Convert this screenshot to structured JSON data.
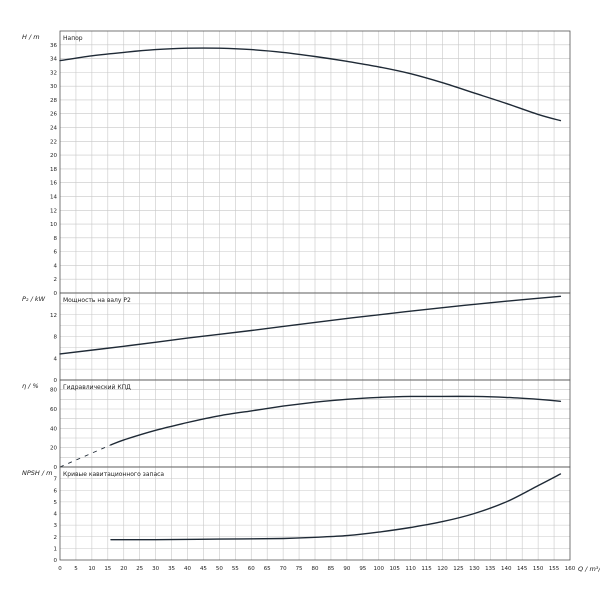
{
  "chart_data": [
    {
      "type": "line",
      "title": "Напор",
      "ylabel": "H / m",
      "xlim": [
        0,
        160
      ],
      "ylim": [
        0,
        38
      ],
      "ytick_step": 2,
      "yticks_labeled": [
        0,
        2,
        4,
        6,
        8,
        10,
        12,
        14,
        16,
        18,
        20,
        22,
        24,
        26,
        28,
        30,
        32,
        34,
        36
      ],
      "grid": true,
      "series": [
        {
          "x": [
            0,
            10,
            20,
            30,
            40,
            50,
            60,
            70,
            80,
            90,
            100,
            110,
            120,
            130,
            140,
            150,
            157
          ],
          "y": [
            33.7,
            34.4,
            34.9,
            35.3,
            35.5,
            35.5,
            35.3,
            34.9,
            34.3,
            33.6,
            32.8,
            31.8,
            30.5,
            29.0,
            27.5,
            25.9,
            25.0
          ]
        }
      ]
    },
    {
      "type": "line",
      "title": "Мощность на валу P2",
      "ylabel": "P₂ / kW",
      "xlim": [
        0,
        160
      ],
      "ylim": [
        0,
        16
      ],
      "ytick_step": 2,
      "yticks_labeled": [
        0,
        4,
        8,
        12
      ],
      "grid": true,
      "series": [
        {
          "x": [
            0,
            20,
            40,
            60,
            80,
            100,
            120,
            140,
            157
          ],
          "y": [
            4.8,
            6.2,
            7.7,
            9.1,
            10.6,
            12.0,
            13.3,
            14.5,
            15.4
          ]
        }
      ]
    },
    {
      "type": "line",
      "title": "Гидравлический КПД",
      "ylabel": "η / %",
      "xlim": [
        0,
        160
      ],
      "ylim": [
        0,
        90
      ],
      "ytick_step": 10,
      "yticks_labeled": [
        0,
        20,
        40,
        60,
        80
      ],
      "grid": true,
      "series": [
        {
          "x": [
            16,
            20,
            30,
            40,
            50,
            60,
            70,
            80,
            90,
            100,
            110,
            120,
            130,
            140,
            150,
            157
          ],
          "y": [
            23,
            28,
            38,
            46,
            53,
            58,
            63,
            67,
            70,
            72,
            73,
            73,
            73,
            72,
            70,
            68
          ]
        },
        {
          "style": "dashed",
          "x": [
            0,
            16
          ],
          "y": [
            0,
            23
          ]
        }
      ]
    },
    {
      "type": "line",
      "title": "Кривые кавитационного запаса",
      "ylabel": "NPSH / m",
      "xlabel": "Q / m³/h",
      "xlim": [
        0,
        160
      ],
      "ylim": [
        0,
        8
      ],
      "ytick_step": 1,
      "yticks_labeled": [
        0,
        1,
        2,
        3,
        4,
        5,
        6,
        7
      ],
      "xticks": [
        0,
        5,
        10,
        15,
        20,
        25,
        30,
        35,
        40,
        45,
        50,
        55,
        60,
        65,
        70,
        75,
        80,
        85,
        90,
        95,
        100,
        105,
        110,
        115,
        120,
        125,
        130,
        135,
        140,
        145,
        150,
        155,
        160
      ],
      "grid": true,
      "series": [
        {
          "x": [
            16,
            30,
            50,
            70,
            80,
            90,
            100,
            110,
            120,
            130,
            140,
            150,
            157
          ],
          "y": [
            1.75,
            1.75,
            1.8,
            1.85,
            1.95,
            2.1,
            2.4,
            2.8,
            3.3,
            4.0,
            5.0,
            6.4,
            7.4
          ]
        }
      ]
    }
  ]
}
